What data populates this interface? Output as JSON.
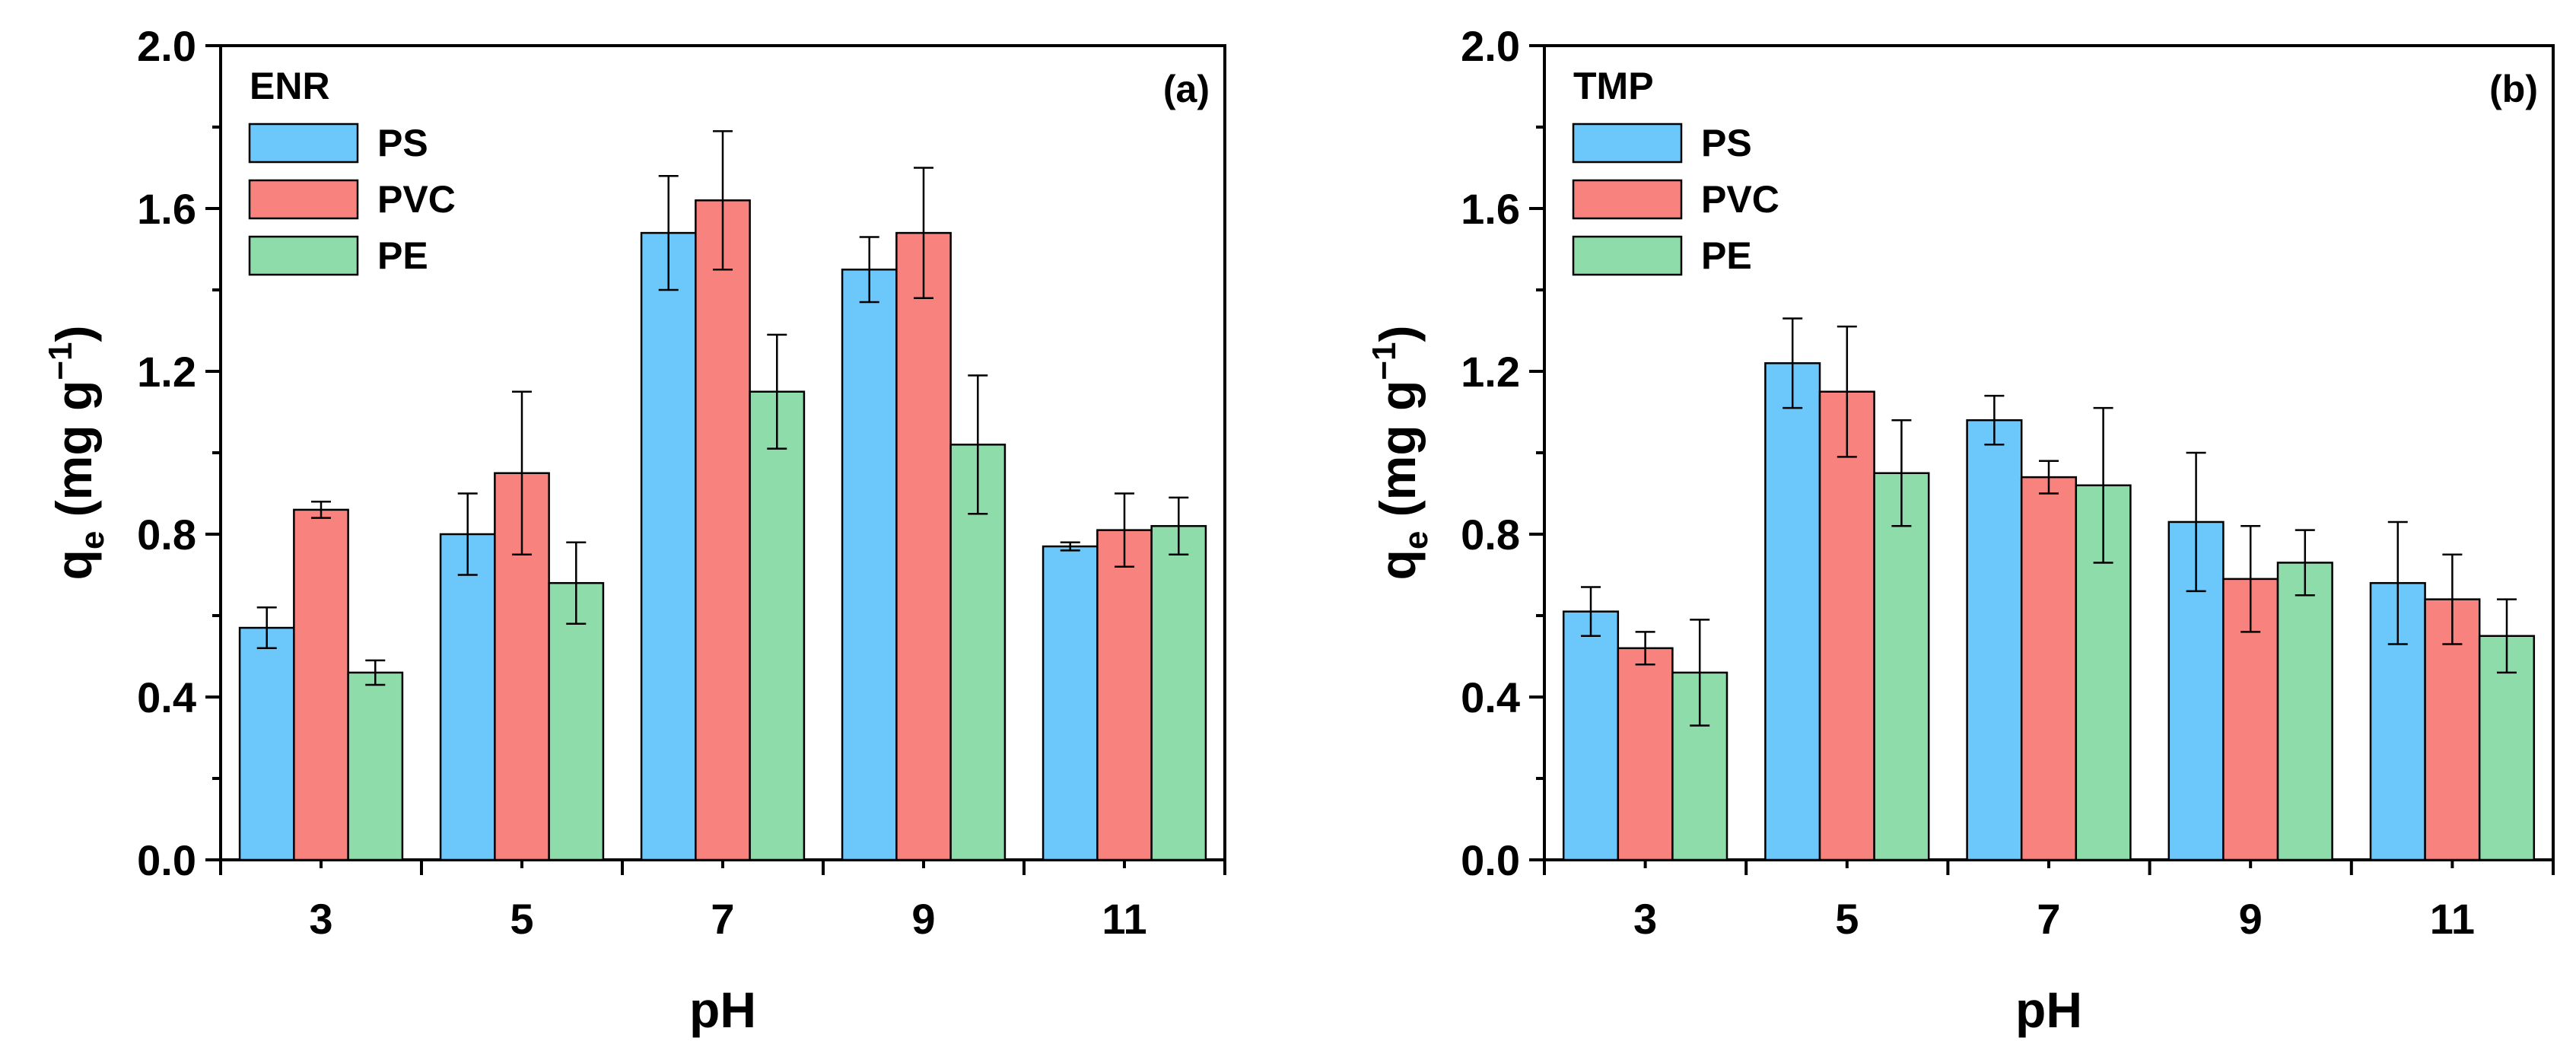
{
  "colors": {
    "PS": "#6CC8FA",
    "PVC": "#F7827E",
    "PE": "#8EDCAA",
    "edge": "#000000"
  },
  "chart_data": [
    {
      "type": "bar",
      "panel_label": "(a)",
      "legend_title": "ENR",
      "xlabel": "pH",
      "ylabel_main": "q",
      "ylabel_sub": "e",
      "ylabel_unit": " (mg g",
      "ylabel_sup": "−1",
      "ylabel_close": ")",
      "ylim": [
        0,
        2.0
      ],
      "yticks": [
        "0.0",
        "0.4",
        "0.8",
        "1.2",
        "1.6",
        "2.0"
      ],
      "categories": [
        "3",
        "5",
        "7",
        "9",
        "11"
      ],
      "series": [
        {
          "name": "PS",
          "values": [
            0.57,
            0.8,
            1.54,
            1.45,
            0.77
          ],
          "errors": [
            0.05,
            0.1,
            0.14,
            0.08,
            0.01
          ]
        },
        {
          "name": "PVC",
          "values": [
            0.86,
            0.95,
            1.62,
            1.54,
            0.81
          ],
          "errors": [
            0.02,
            0.2,
            0.17,
            0.16,
            0.09
          ]
        },
        {
          "name": "PE",
          "values": [
            0.46,
            0.68,
            1.15,
            1.02,
            0.82
          ],
          "errors": [
            0.03,
            0.1,
            0.14,
            0.17,
            0.07
          ]
        }
      ]
    },
    {
      "type": "bar",
      "panel_label": "(b)",
      "legend_title": "TMP",
      "xlabel": "pH",
      "ylabel_main": "q",
      "ylabel_sub": "e",
      "ylabel_unit": " (mg g",
      "ylabel_sup": "−1",
      "ylabel_close": ")",
      "ylim": [
        0,
        2.0
      ],
      "yticks": [
        "0.0",
        "0.4",
        "0.8",
        "1.2",
        "1.6",
        "2.0"
      ],
      "categories": [
        "3",
        "5",
        "7",
        "9",
        "11"
      ],
      "series": [
        {
          "name": "PS",
          "values": [
            0.61,
            1.22,
            1.08,
            0.83,
            0.68
          ],
          "errors": [
            0.06,
            0.11,
            0.06,
            0.17,
            0.15
          ]
        },
        {
          "name": "PVC",
          "values": [
            0.52,
            1.15,
            0.94,
            0.69,
            0.64
          ],
          "errors": [
            0.04,
            0.16,
            0.04,
            0.13,
            0.11
          ]
        },
        {
          "name": "PE",
          "values": [
            0.46,
            0.95,
            0.92,
            0.73,
            0.55
          ],
          "errors": [
            0.13,
            0.13,
            0.19,
            0.08,
            0.09
          ]
        }
      ]
    }
  ]
}
